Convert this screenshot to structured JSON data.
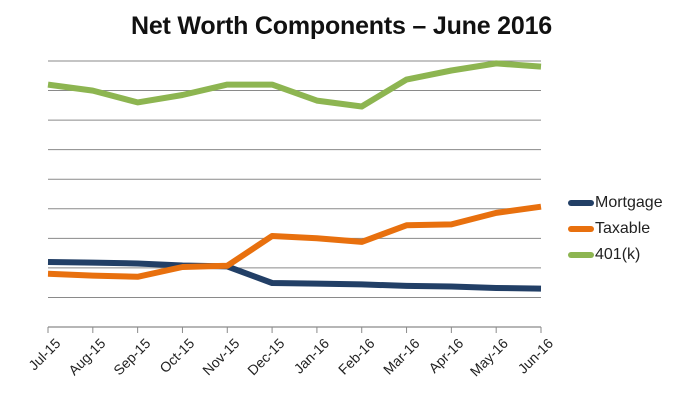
{
  "chart_data": {
    "type": "line",
    "title": "Net Worth Components – June 2016",
    "xlabel": "",
    "ylabel": "",
    "y_tick_labels_visible": false,
    "y_units": "gridline units (axis labels hidden; 1 unit = 1 gridline)",
    "ylim": [
      0,
      9
    ],
    "grid": true,
    "legend_position": "right",
    "categories": [
      "Jul-15",
      "Aug-15",
      "Sep-15",
      "Oct-15",
      "Nov-15",
      "Dec-15",
      "Jan-16",
      "Feb-16",
      "Mar-16",
      "Apr-16",
      "May-16",
      "Jun-16"
    ],
    "series": [
      {
        "name": "Mortgage",
        "color": "#223F66",
        "values": [
          2.2,
          2.18,
          2.15,
          2.08,
          2.05,
          1.49,
          1.47,
          1.44,
          1.39,
          1.37,
          1.32,
          1.3
        ]
      },
      {
        "name": "Taxable",
        "color": "#E8700E",
        "values": [
          1.8,
          1.74,
          1.7,
          2.03,
          2.07,
          3.08,
          3.0,
          2.88,
          3.44,
          3.47,
          3.86,
          4.07
        ]
      },
      {
        "name": "401(k)",
        "color": "#8DB551",
        "values": [
          8.2,
          8.0,
          7.6,
          7.85,
          8.2,
          8.2,
          7.66,
          7.46,
          8.37,
          8.68,
          8.92,
          8.81
        ]
      }
    ]
  },
  "legend": {
    "items": [
      {
        "label": "Mortgage",
        "color": "#223F66"
      },
      {
        "label": "Taxable",
        "color": "#E8700E"
      },
      {
        "label": "401(k)",
        "color": "#8DB551"
      }
    ]
  }
}
